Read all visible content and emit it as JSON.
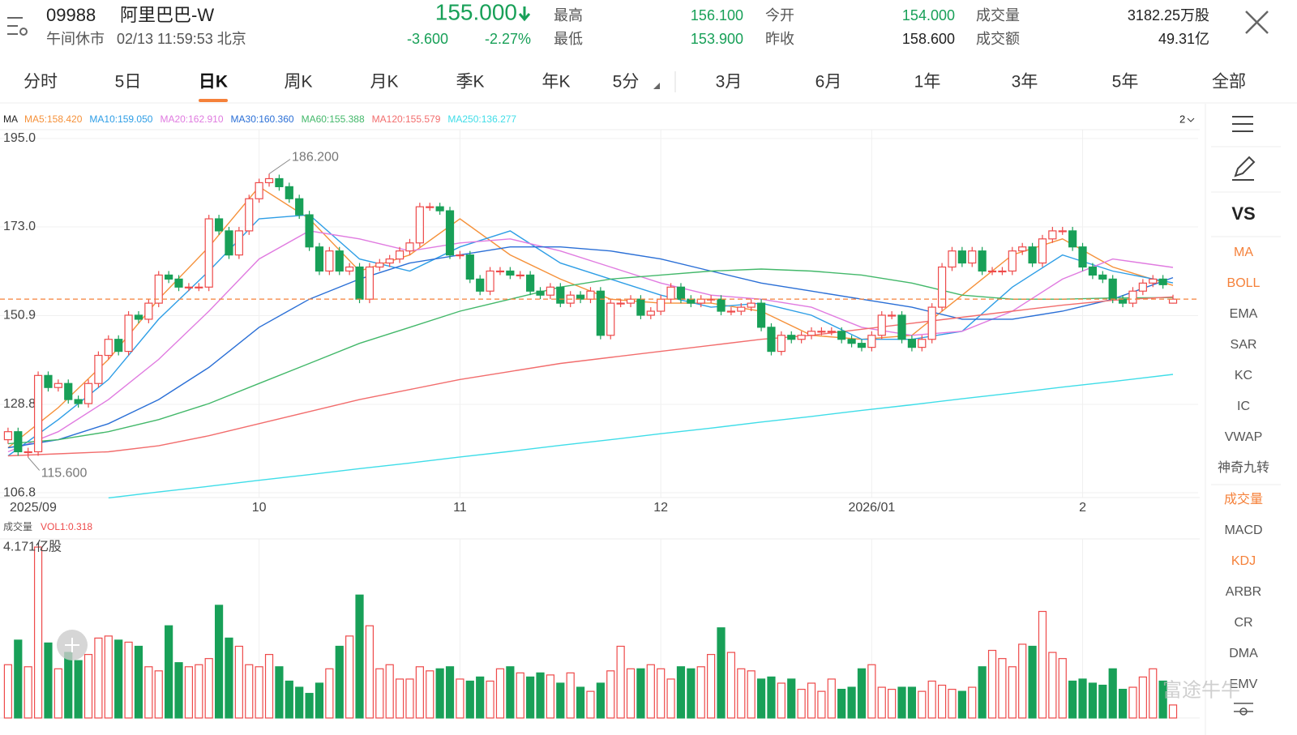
{
  "header": {
    "symbol": "09988",
    "name": "阿里巴巴-W",
    "status": "午间休市",
    "datetime": "02/13 11:59:53 北京",
    "price": "155.000",
    "change": "-3.600",
    "change_pct": "-2.27%",
    "price_color": "#18a058",
    "stats": [
      {
        "label": "最高",
        "value": "156.100",
        "color": "#18a058"
      },
      {
        "label": "最低",
        "value": "153.900",
        "color": "#18a058"
      },
      {
        "label": "今开",
        "value": "154.000",
        "color": "#18a058"
      },
      {
        "label": "昨收",
        "value": "158.600",
        "color": "#222222"
      },
      {
        "label": "成交量",
        "value": "3182.25万股",
        "color": "#222222"
      },
      {
        "label": "成交额",
        "value": "49.31亿",
        "color": "#222222"
      }
    ]
  },
  "tabs": [
    {
      "label": "分时"
    },
    {
      "label": "5日"
    },
    {
      "label": "日K",
      "active": true
    },
    {
      "label": "周K"
    },
    {
      "label": "月K"
    },
    {
      "label": "季K"
    },
    {
      "label": "年K"
    },
    {
      "label": "5分"
    },
    {
      "label": "3月"
    },
    {
      "label": "6月"
    },
    {
      "label": "1年"
    },
    {
      "label": "3年"
    },
    {
      "label": "5年"
    },
    {
      "label": "全部"
    }
  ],
  "sidebar": {
    "vs": "VS",
    "items": [
      {
        "label": "MA",
        "active": true
      },
      {
        "label": "BOLL",
        "active": true
      },
      {
        "label": "EMA"
      },
      {
        "label": "SAR"
      },
      {
        "label": "KC"
      },
      {
        "label": "IC"
      },
      {
        "label": "VWAP"
      },
      {
        "label": "神奇九转"
      },
      {
        "label": "成交量",
        "active": true
      },
      {
        "label": "MACD"
      },
      {
        "label": "KDJ",
        "active": true
      },
      {
        "label": "ARBR"
      },
      {
        "label": "CR"
      },
      {
        "label": "DMA"
      },
      {
        "label": "EMV"
      }
    ]
  },
  "watermark": "富途牛牛",
  "chart_data": [
    {
      "type": "candlestick",
      "title": "MA",
      "period_label": "2",
      "up_color": "#ee4a4a",
      "down_color": "#18a058",
      "last_line_color": "#f5813a",
      "high_label": "186.200",
      "low_label": "115.600",
      "xlim": [
        -0.8,
        118.5
      ],
      "ylim": [
        105.6,
        197.2
      ],
      "grid": true,
      "yticks": [
        {
          "value": 195,
          "label": "195.0"
        },
        {
          "value": 173,
          "label": "173.0"
        },
        150.9,
        128.8,
        106.8
      ],
      "xticks": [
        {
          "value": 0,
          "label": "2025/09"
        },
        {
          "value": 25,
          "label": "10"
        },
        {
          "value": 45,
          "label": "11"
        },
        {
          "value": 65,
          "label": "12"
        },
        {
          "value": 86,
          "label": "2026/01"
        },
        {
          "value": 107,
          "label": "2"
        }
      ],
      "open": [
        120,
        122,
        117,
        117,
        136,
        133,
        134,
        130,
        129,
        134,
        141,
        145,
        142,
        151,
        150,
        154,
        161,
        160,
        158,
        158,
        158,
        175,
        172,
        166,
        172,
        180,
        184,
        185,
        183,
        180,
        176,
        168,
        162,
        167,
        162,
        163,
        155,
        163,
        164,
        165,
        167,
        169,
        178,
        178,
        177,
        166,
        166,
        160,
        157,
        162,
        162,
        161,
        161,
        157,
        156,
        158,
        154,
        156,
        155,
        157,
        146,
        154,
        154,
        155,
        151,
        152,
        155,
        158,
        155,
        154,
        155,
        155,
        152,
        152,
        153,
        154,
        148,
        142,
        146,
        145,
        146,
        147,
        147,
        147,
        145,
        144,
        143,
        146,
        151,
        151,
        145,
        143,
        145,
        153,
        163,
        167,
        164,
        167,
        162,
        162,
        162,
        167,
        168,
        164,
        170,
        172,
        172,
        168,
        163,
        161,
        160,
        155,
        154,
        157,
        159,
        160,
        154
      ],
      "high": [
        123,
        123,
        118,
        137,
        137,
        135,
        135,
        131,
        135,
        142,
        146,
        146,
        152,
        152,
        155,
        162,
        162,
        161,
        159,
        159,
        176,
        176,
        173,
        173,
        181,
        185,
        186.2,
        186,
        184,
        181,
        177,
        169,
        168,
        168,
        164,
        164,
        164,
        165,
        166,
        168,
        170,
        179,
        179,
        179,
        178,
        167,
        167,
        161,
        163,
        163,
        163,
        162,
        162,
        158,
        159,
        159,
        157,
        157,
        158,
        158,
        155,
        155,
        156,
        156,
        153,
        156,
        159,
        159,
        156,
        156,
        156,
        156,
        153,
        154,
        155,
        155,
        149,
        147,
        147,
        147,
        148,
        148,
        148,
        148,
        146,
        145,
        147,
        152,
        152,
        152,
        146,
        146,
        154,
        164,
        168,
        168,
        168,
        168,
        163,
        163,
        168,
        169,
        169,
        171,
        173,
        173,
        173,
        169,
        164,
        162,
        161,
        156,
        158,
        160,
        161,
        161,
        156.1
      ],
      "low": [
        119,
        116,
        115.6,
        116,
        132,
        132,
        129,
        128,
        128,
        133,
        140,
        141,
        141,
        149,
        149,
        153,
        159,
        157,
        157,
        157,
        157,
        171,
        165,
        165,
        171,
        179,
        183,
        182,
        179,
        175,
        167,
        161,
        161,
        161,
        161,
        154,
        154,
        162,
        163,
        164,
        166,
        168,
        177,
        176,
        165,
        165,
        159,
        156,
        156,
        161,
        160,
        160,
        156,
        155,
        155,
        153,
        153,
        154,
        154,
        145,
        145,
        153,
        153,
        150,
        150,
        151,
        154,
        154,
        153,
        153,
        154,
        151,
        151,
        151,
        152,
        147,
        141,
        141,
        144,
        144,
        145,
        146,
        146,
        144,
        143,
        142,
        142,
        145,
        150,
        144,
        142,
        142,
        144,
        152,
        162,
        163,
        163,
        161,
        161,
        161,
        161,
        166,
        163,
        163,
        169,
        171,
        167,
        162,
        160,
        159,
        154,
        153,
        153,
        156,
        158,
        157.6,
        153.9
      ],
      "close": [
        122,
        117,
        117,
        136,
        133,
        134,
        130,
        129,
        134,
        141,
        145,
        142,
        151,
        150,
        154,
        161,
        160,
        158,
        158,
        158,
        175,
        172,
        166,
        172,
        180,
        184,
        185,
        183,
        180,
        176,
        168,
        162,
        167,
        162,
        163,
        155,
        163,
        164,
        165,
        167,
        169,
        178,
        178,
        177,
        166,
        166,
        160,
        157,
        162,
        162,
        161,
        161,
        157,
        156,
        158,
        154,
        156,
        155,
        157,
        146,
        154,
        154,
        155,
        151,
        152,
        155,
        158,
        155,
        154,
        155,
        155,
        152,
        152,
        153,
        154,
        148,
        142,
        146,
        145,
        146,
        147,
        147,
        147,
        145,
        144,
        143,
        146,
        151,
        151,
        145,
        143,
        145,
        153,
        163,
        167,
        164,
        167,
        162,
        162,
        162,
        167,
        168,
        164,
        170,
        172,
        172,
        168,
        163,
        161,
        160,
        155,
        154,
        157,
        159,
        160,
        158.6,
        155
      ],
      "ma_x": [
        0,
        5,
        10,
        15,
        20,
        25,
        30,
        35,
        40,
        45,
        50,
        55,
        60,
        65,
        70,
        75,
        80,
        85,
        90,
        95,
        100,
        105,
        110,
        116
      ],
      "series": [
        {
          "name": "MA5:158.420",
          "color": "#f5913a",
          "values": [
            118,
            128,
            140,
            155,
            168,
            183,
            175,
            162,
            166,
            175,
            166,
            160,
            155,
            154,
            154,
            152,
            146,
            145,
            146,
            156,
            166,
            170,
            163,
            158.42
          ]
        },
        {
          "name": "MA10:159.050",
          "color": "#2e9ee6",
          "values": [
            116,
            125,
            135,
            150,
            162,
            175,
            176,
            165,
            162,
            168,
            172,
            164,
            160,
            156,
            153,
            154,
            151,
            145,
            145,
            147,
            158,
            166,
            162,
            159.05
          ]
        },
        {
          "name": "MA20:162.910",
          "color": "#e07be0",
          "values": [
            117,
            122,
            130,
            140,
            152,
            165,
            172,
            170,
            167,
            169,
            170,
            167,
            163,
            159,
            156,
            155,
            153,
            148,
            146,
            147,
            152,
            160,
            165,
            162.91
          ]
        },
        {
          "name": "MA30:160.360",
          "color": "#2a6fd6",
          "values": [
            118,
            120,
            124,
            130,
            138,
            148,
            155,
            160,
            164,
            166,
            168,
            168,
            167,
            165,
            162,
            159,
            157,
            155,
            153,
            150,
            150,
            152,
            155,
            160.36
          ]
        },
        {
          "name": "MA60:155.388",
          "color": "#43b86a",
          "values": [
            119,
            120,
            122,
            125,
            129,
            134,
            139,
            144,
            148,
            152,
            155,
            158,
            160,
            161,
            162,
            162.5,
            162,
            161,
            159,
            156,
            155,
            155,
            155.3,
            155.388
          ]
        },
        {
          "name": "MA120:155.579",
          "color": "#f26d6d",
          "values": [
            116,
            116.5,
            117,
            118.5,
            121,
            124,
            127,
            130,
            132.5,
            135,
            137,
            139,
            140.5,
            142,
            143.5,
            145,
            146,
            147.5,
            149,
            150.5,
            152,
            153.5,
            154.7,
            155.579
          ]
        },
        {
          "name": "MA250:136.277",
          "color": "#3fdde8",
          "values": [
            null,
            null,
            105.5,
            107,
            108.4,
            109.9,
            111.3,
            112.8,
            114.2,
            115.7,
            117.1,
            118.6,
            120,
            121.5,
            122.9,
            124.4,
            125.8,
            127.3,
            128.7,
            130.2,
            131.6,
            133.1,
            134.5,
            136.277
          ]
        }
      ]
    },
    {
      "type": "bar",
      "title": "成交量",
      "legend": "VOL1:0.318",
      "legend_color": "#ee4a4a",
      "ylim": [
        0,
        4.37
      ],
      "yticks": [
        {
          "value": 4.171,
          "label": "4.171亿股"
        }
      ],
      "values": [
        1.3,
        1.9,
        1.25,
        4.171,
        1.83,
        1.2,
        1.6,
        1.4,
        1.55,
        1.95,
        2.0,
        1.9,
        1.85,
        1.75,
        1.25,
        1.15,
        2.25,
        1.35,
        1.25,
        1.3,
        1.45,
        2.75,
        1.95,
        1.75,
        1.3,
        1.25,
        1.55,
        1.25,
        0.9,
        0.75,
        0.6,
        0.85,
        1.2,
        1.75,
        2.0,
        3.0,
        2.25,
        1.2,
        1.3,
        0.95,
        0.95,
        1.25,
        1.15,
        1.2,
        1.25,
        0.95,
        0.9,
        1.0,
        0.9,
        1.2,
        1.25,
        1.1,
        1.0,
        1.1,
        1.05,
        0.85,
        1.1,
        0.75,
        0.65,
        0.85,
        1.15,
        1.75,
        1.2,
        1.2,
        1.3,
        1.2,
        0.95,
        1.25,
        1.2,
        1.25,
        1.55,
        2.2,
        1.6,
        1.2,
        1.15,
        0.95,
        1.0,
        0.85,
        0.95,
        0.7,
        0.85,
        0.65,
        0.95,
        0.7,
        0.75,
        1.2,
        1.3,
        0.75,
        0.7,
        0.75,
        0.75,
        0.65,
        0.9,
        0.8,
        0.7,
        0.65,
        0.75,
        1.25,
        1.65,
        1.45,
        1.25,
        1.8,
        1.75,
        2.6,
        1.6,
        1.45,
        0.9,
        0.95,
        0.85,
        0.8,
        1.2,
        0.7,
        0.75,
        1.0,
        1.2,
        0.9,
        0.318
      ]
    }
  ]
}
